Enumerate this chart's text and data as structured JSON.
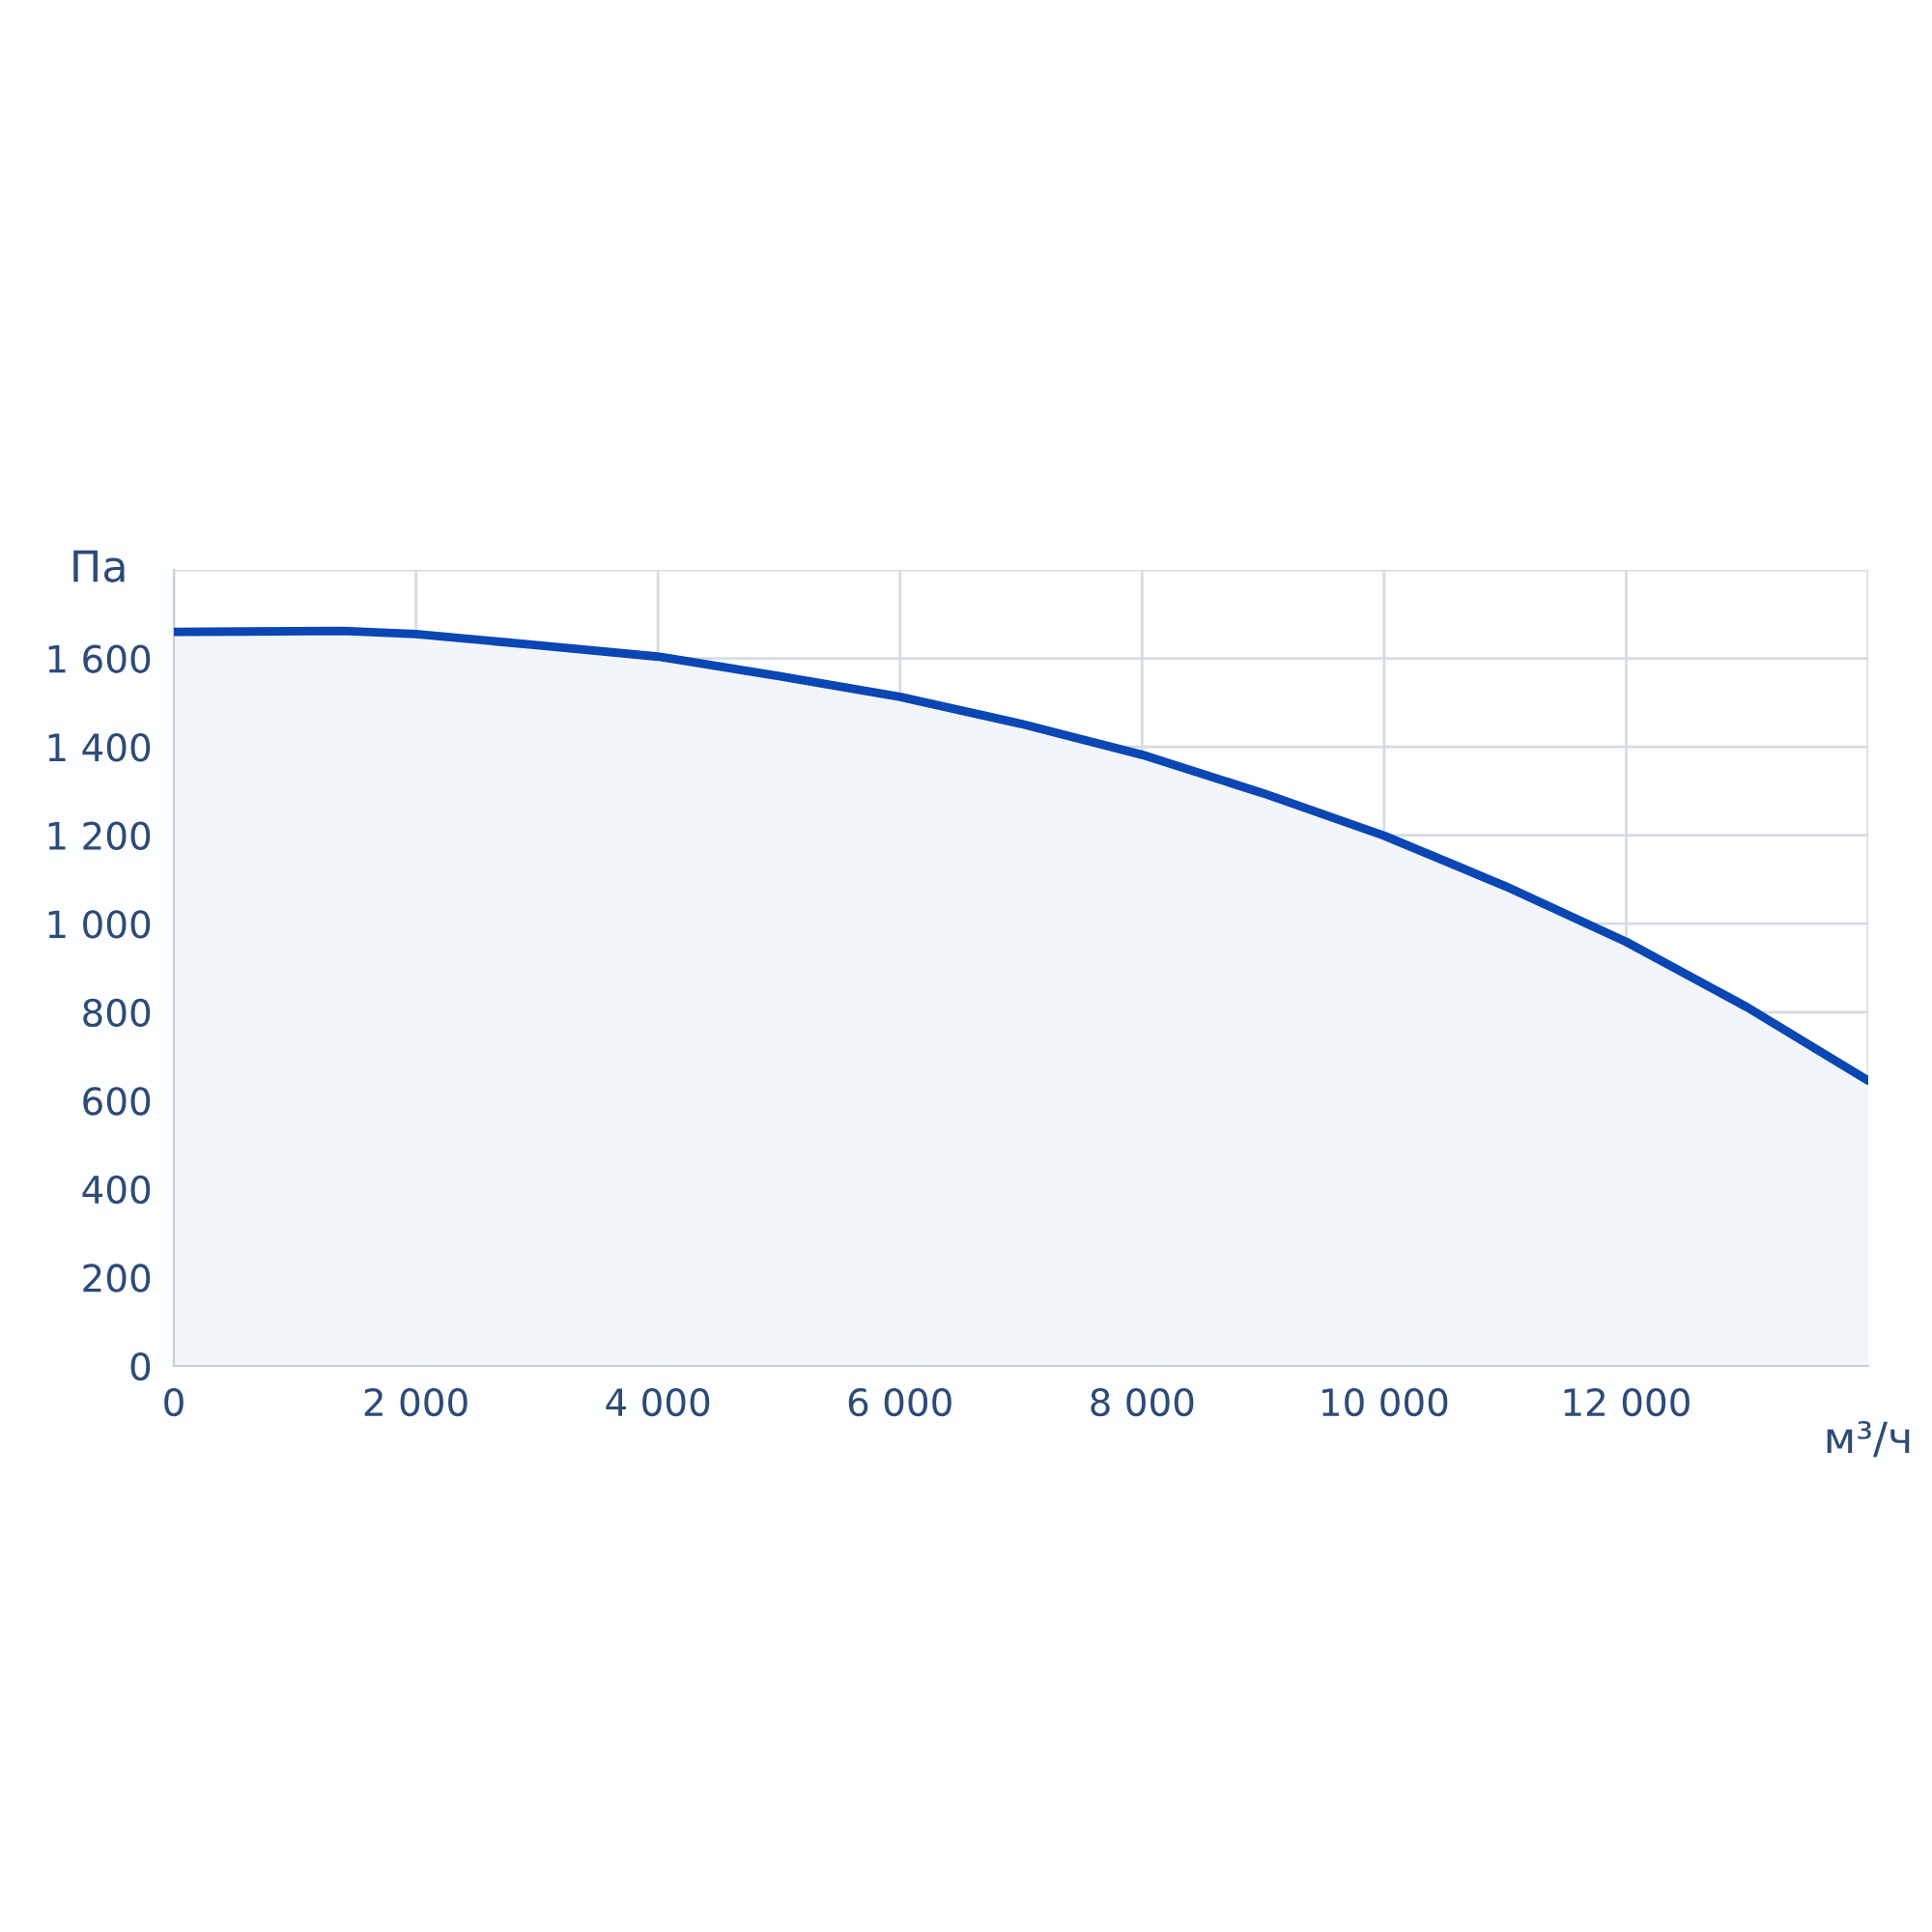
{
  "chart_data": {
    "type": "area",
    "xlabel": "м³/ч",
    "ylabel": "Па",
    "x": [
      0,
      1400,
      2000,
      3000,
      4000,
      5000,
      6000,
      7000,
      8000,
      9000,
      10000,
      11000,
      12000,
      13000,
      14000
    ],
    "series": [
      {
        "color": "#0a46b4",
        "values": [
          1660,
          1662,
          1655,
          1630,
          1604,
          1560,
          1513,
          1452,
          1382,
          1295,
          1199,
          1085,
          959,
          811,
          645
        ]
      }
    ],
    "xlim": [
      0,
      14000
    ],
    "xticks": [
      0,
      {
        "value": 2000,
        "label": "2 000"
      },
      {
        "value": 4000,
        "label": "4 000"
      },
      {
        "value": 6000,
        "label": "6 000"
      },
      {
        "value": 8000,
        "label": "8 000"
      },
      {
        "value": 10000,
        "label": "10 000"
      },
      {
        "value": 12000,
        "label": "12 000"
      },
      {
        "value": 14000,
        "label": null
      }
    ],
    "ylim": [
      0,
      1800
    ],
    "yticks": [
      0,
      200,
      400,
      600,
      800,
      {
        "value": 1000,
        "label": "1 000"
      },
      {
        "value": 1200,
        "label": "1 200"
      },
      {
        "value": 1400,
        "label": "1 400"
      },
      {
        "value": 1600,
        "label": "1 600"
      },
      {
        "value": 1800,
        "label": null
      }
    ],
    "grid": true,
    "marker": "none",
    "line_style": "solid"
  }
}
